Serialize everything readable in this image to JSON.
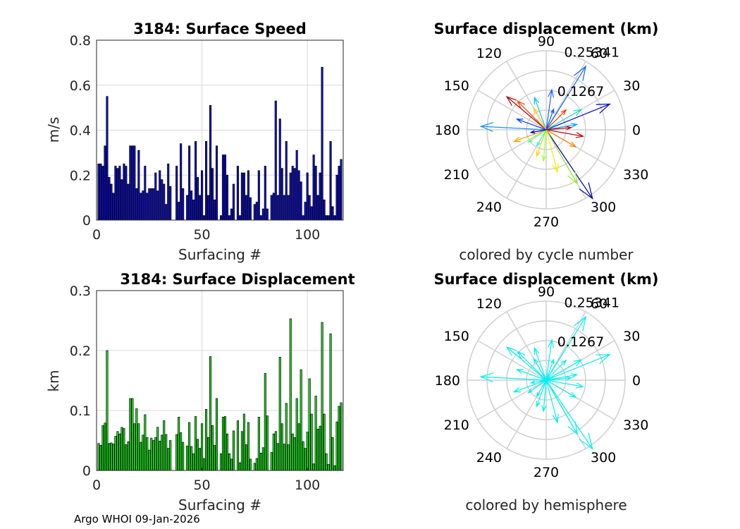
{
  "footer": "Argo WHOI 09-Jan-2026",
  "colors": {
    "speed_bar": "#1010c8",
    "disp_bar": "#22e022",
    "grid": "#d9d9d9",
    "polar_grid": "#cfcfcf",
    "hemisphere_arrow": "#00f0f0"
  },
  "chart_data": [
    {
      "type": "bar",
      "title": "3184: Surface Speed",
      "xlabel": "Surfacing #",
      "ylabel": "m/s",
      "xlim": [
        0,
        117
      ],
      "ylim": [
        0,
        0.8
      ],
      "xticks": [
        "0",
        "50",
        "100"
      ],
      "yticks": [
        "0",
        "0.2",
        "0.4",
        "0.6",
        "0.8"
      ],
      "grid": true,
      "x": [
        1,
        2,
        3,
        4,
        5,
        6,
        7,
        8,
        9,
        10,
        11,
        12,
        13,
        14,
        15,
        16,
        17,
        18,
        19,
        20,
        21,
        22,
        23,
        24,
        25,
        26,
        27,
        28,
        29,
        30,
        31,
        32,
        33,
        34,
        35,
        38,
        39,
        40,
        41,
        43,
        44,
        45,
        46,
        47,
        48,
        49,
        50,
        51,
        52,
        53,
        54,
        55,
        56,
        57,
        59,
        60,
        61,
        62,
        63,
        64,
        65,
        67,
        68,
        69,
        70,
        71,
        72,
        73,
        75,
        76,
        77,
        78,
        79,
        80,
        81,
        83,
        84,
        85,
        86,
        87,
        88,
        89,
        90,
        91,
        92,
        93,
        94,
        95,
        96,
        97,
        98,
        99,
        100,
        101,
        102,
        103,
        104,
        105,
        106,
        107,
        108,
        109,
        110,
        111,
        112,
        113,
        114,
        115,
        116
      ],
      "values": [
        0.25,
        0.25,
        0.24,
        0.33,
        0.55,
        0.19,
        0.16,
        0.12,
        0.24,
        0.23,
        0.24,
        0.18,
        0.25,
        0.24,
        0.16,
        0.33,
        0.33,
        0.33,
        0.14,
        0.31,
        0.12,
        0.13,
        0.24,
        0.12,
        0.14,
        0.14,
        0.14,
        0.21,
        0.13,
        0.22,
        0.18,
        0.16,
        0.07,
        0.25,
        0.15,
        0.24,
        0.08,
        0.34,
        0.14,
        0.11,
        0.33,
        0.13,
        0.09,
        0.35,
        0.19,
        0.11,
        0.22,
        0.02,
        0.35,
        0.11,
        0.51,
        0.23,
        0.09,
        0.33,
        0.02,
        0.29,
        0.29,
        0.2,
        0.02,
        0.05,
        0.16,
        0.24,
        0.02,
        0.21,
        0.21,
        0.11,
        0.22,
        0.1,
        0.07,
        0.08,
        0.22,
        0.02,
        0.05,
        0.24,
        0.05,
        0.11,
        0.12,
        0.53,
        0.11,
        0.45,
        0.23,
        0.11,
        0.35,
        0.11,
        0.21,
        0.24,
        0.23,
        0.31,
        0.22,
        0.17,
        0.02,
        0.08,
        0.21,
        0.11,
        0.06,
        0.29,
        0.24,
        0.11,
        0.21,
        0.68,
        0.09,
        0.02,
        0.02,
        0.35,
        0.06,
        0.02,
        0.2,
        0.24,
        0.27
      ],
      "bar_color": "#1010c8"
    },
    {
      "type": "bar",
      "title": "3184: Surface Displacement",
      "xlabel": "Surfacing #",
      "ylabel": "km",
      "xlim": [
        0,
        117
      ],
      "ylim": [
        0,
        0.3
      ],
      "xticks": [
        "0",
        "50",
        "100"
      ],
      "yticks": [
        "0",
        "0.1",
        "0.2",
        "0.3"
      ],
      "grid": true,
      "x": [
        1,
        2,
        3,
        4,
        5,
        6,
        7,
        8,
        9,
        10,
        11,
        12,
        13,
        14,
        15,
        16,
        17,
        18,
        19,
        20,
        21,
        22,
        23,
        24,
        25,
        26,
        27,
        28,
        29,
        30,
        31,
        32,
        33,
        34,
        35,
        38,
        39,
        40,
        41,
        43,
        44,
        45,
        46,
        47,
        48,
        49,
        50,
        51,
        52,
        53,
        54,
        55,
        56,
        57,
        59,
        60,
        61,
        62,
        63,
        64,
        65,
        67,
        68,
        69,
        70,
        71,
        72,
        73,
        75,
        76,
        77,
        78,
        79,
        80,
        81,
        83,
        84,
        85,
        86,
        87,
        88,
        89,
        90,
        91,
        92,
        93,
        94,
        95,
        96,
        97,
        98,
        99,
        100,
        101,
        102,
        103,
        104,
        105,
        106,
        107,
        108,
        109,
        110,
        111,
        112,
        113,
        114,
        115,
        116
      ],
      "values": [
        0.045,
        0.042,
        0.075,
        0.079,
        0.2,
        0.045,
        0.046,
        0.044,
        0.057,
        0.065,
        0.061,
        0.072,
        0.07,
        0.043,
        0.048,
        0.12,
        0.12,
        0.078,
        0.103,
        0.078,
        0.047,
        0.059,
        0.093,
        0.055,
        0.034,
        0.054,
        0.05,
        0.055,
        0.072,
        0.049,
        0.059,
        0.083,
        0.06,
        0.037,
        0.05,
        0.06,
        0.089,
        0.063,
        0.047,
        0.041,
        0.08,
        0.04,
        0.028,
        0.09,
        0.052,
        0.037,
        0.078,
        0.02,
        0.102,
        0.055,
        0.19,
        0.075,
        0.042,
        0.12,
        0.028,
        0.089,
        0.09,
        0.061,
        0.028,
        0.019,
        0.066,
        0.083,
        0.013,
        0.065,
        0.094,
        0.043,
        0.08,
        0.019,
        0.012,
        0.02,
        0.089,
        0.029,
        0.038,
        0.162,
        0.091,
        0.03,
        0.061,
        0.065,
        0.045,
        0.189,
        0.078,
        0.044,
        0.112,
        0.043,
        0.253,
        0.061,
        0.055,
        0.12,
        0.078,
        0.168,
        0.048,
        0.037,
        0.064,
        0.153,
        0.094,
        0.011,
        0.124,
        0.069,
        0.074,
        0.247,
        0.094,
        0.028,
        0.01,
        0.228,
        0.055,
        0.008,
        0.081,
        0.107,
        0.113
      ],
      "bar_color": "#22e022"
    },
    {
      "type": "polar",
      "title": "Surface displacement (km)",
      "caption": "colored by cycle number",
      "radial_ticks": [
        "0.1267",
        "0.25341"
      ],
      "rlim": [
        0,
        0.25341
      ],
      "angle_ticks": [
        "0",
        "30",
        "60",
        "90",
        "120",
        "150",
        "180",
        "210",
        "240",
        "270",
        "300",
        "330"
      ],
      "arrows": [
        {
          "angle": 58,
          "r": 0.24,
          "color": "#1565e0"
        },
        {
          "angle": 22,
          "r": 0.22,
          "color": "#0000c8"
        },
        {
          "angle": 177,
          "r": 0.21,
          "color": "#1e90ff"
        },
        {
          "angle": 304,
          "r": 0.27,
          "color": "#0000a0"
        },
        {
          "angle": 140,
          "r": 0.165,
          "color": "#b00000"
        },
        {
          "angle": 135,
          "r": 0.13,
          "color": "#ff4000"
        },
        {
          "angle": 30,
          "r": 0.13,
          "color": "#20e0c0"
        },
        {
          "angle": 82,
          "r": 0.13,
          "color": "#2060ff"
        },
        {
          "angle": 300,
          "r": 0.2,
          "color": "#90ee30"
        },
        {
          "angle": 285,
          "r": 0.14,
          "color": "#f0f000"
        },
        {
          "angle": 200,
          "r": 0.11,
          "color": "#ffa000"
        },
        {
          "angle": 250,
          "r": 0.09,
          "color": "#ffd000"
        },
        {
          "angle": 350,
          "r": 0.12,
          "color": "#c00000"
        },
        {
          "angle": 330,
          "r": 0.11,
          "color": "#ff8000"
        },
        {
          "angle": 10,
          "r": 0.1,
          "color": "#00a0ff"
        },
        {
          "angle": 110,
          "r": 0.11,
          "color": "#00c0ff"
        },
        {
          "angle": 160,
          "r": 0.1,
          "color": "#0040ff"
        },
        {
          "angle": 45,
          "r": 0.09,
          "color": "#ff3000"
        },
        {
          "angle": 215,
          "r": 0.07,
          "color": "#60ff60"
        },
        {
          "angle": 265,
          "r": 0.1,
          "color": "#a0ff40"
        },
        {
          "angle": 120,
          "r": 0.08,
          "color": "#ffd000"
        },
        {
          "angle": 70,
          "r": 0.07,
          "color": "#0060e0"
        },
        {
          "angle": 240,
          "r": 0.06,
          "color": "#20ffe0"
        },
        {
          "angle": 5,
          "r": 0.08,
          "color": "#b00000"
        },
        {
          "angle": 190,
          "r": 0.05,
          "color": "#0000c0"
        }
      ]
    },
    {
      "type": "polar",
      "title": "Surface displacement (km)",
      "caption": "colored by hemisphere",
      "radial_ticks": [
        "0.1267",
        "0.25341"
      ],
      "rlim": [
        0,
        0.25341
      ],
      "angle_ticks": [
        "0",
        "30",
        "60",
        "90",
        "120",
        "150",
        "180",
        "210",
        "240",
        "270",
        "300",
        "330"
      ],
      "arrows": [
        {
          "angle": 58,
          "r": 0.24,
          "color": "#00f0f0"
        },
        {
          "angle": 22,
          "r": 0.22,
          "color": "#00f0f0"
        },
        {
          "angle": 177,
          "r": 0.21,
          "color": "#00f0f0"
        },
        {
          "angle": 304,
          "r": 0.27,
          "color": "#00f0f0"
        },
        {
          "angle": 140,
          "r": 0.165,
          "color": "#00f0f0"
        },
        {
          "angle": 135,
          "r": 0.13,
          "color": "#00f0f0"
        },
        {
          "angle": 30,
          "r": 0.13,
          "color": "#00f0f0"
        },
        {
          "angle": 82,
          "r": 0.13,
          "color": "#00f0f0"
        },
        {
          "angle": 300,
          "r": 0.2,
          "color": "#00f0f0"
        },
        {
          "angle": 285,
          "r": 0.14,
          "color": "#00f0f0"
        },
        {
          "angle": 200,
          "r": 0.11,
          "color": "#00f0f0"
        },
        {
          "angle": 250,
          "r": 0.09,
          "color": "#00f0f0"
        },
        {
          "angle": 350,
          "r": 0.12,
          "color": "#00f0f0"
        },
        {
          "angle": 330,
          "r": 0.11,
          "color": "#00f0f0"
        },
        {
          "angle": 10,
          "r": 0.1,
          "color": "#00f0f0"
        },
        {
          "angle": 110,
          "r": 0.11,
          "color": "#00f0f0"
        },
        {
          "angle": 160,
          "r": 0.1,
          "color": "#00f0f0"
        },
        {
          "angle": 45,
          "r": 0.09,
          "color": "#00f0f0"
        },
        {
          "angle": 215,
          "r": 0.07,
          "color": "#00f0f0"
        },
        {
          "angle": 265,
          "r": 0.1,
          "color": "#00f0f0"
        },
        {
          "angle": 120,
          "r": 0.08,
          "color": "#00f0f0"
        },
        {
          "angle": 70,
          "r": 0.07,
          "color": "#00f0f0"
        },
        {
          "angle": 240,
          "r": 0.06,
          "color": "#00f0f0"
        },
        {
          "angle": 5,
          "r": 0.08,
          "color": "#00f0f0"
        },
        {
          "angle": 190,
          "r": 0.05,
          "color": "#00f0f0"
        }
      ]
    }
  ]
}
